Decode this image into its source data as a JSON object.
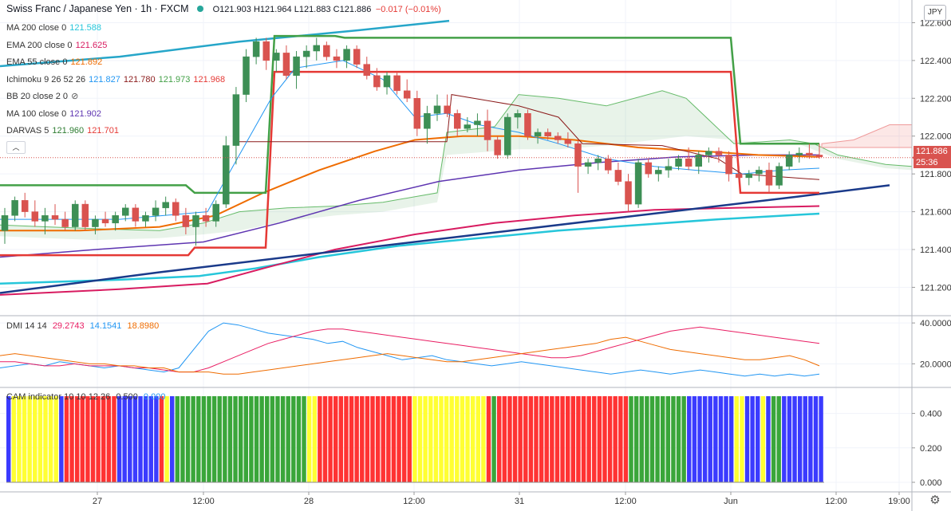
{
  "header": {
    "symbol": "Swiss Franc / Japanese Yen · 1h · FXCM",
    "ohlc_label": "O121.903 H121.964 L121.883 C121.886",
    "change": "−0.017 (−0.01%)",
    "currency": "JPY"
  },
  "indicators": [
    {
      "label": "MA 200 close 0",
      "values": [
        "121.588"
      ],
      "colors": [
        "#26c6da"
      ]
    },
    {
      "label": "EMA 200 close 0",
      "values": [
        "121.625"
      ],
      "colors": [
        "#d81b60"
      ]
    },
    {
      "label": "EMA 55 close 0",
      "values": [
        "121.892"
      ],
      "colors": [
        "#ef6c00"
      ]
    },
    {
      "label": "Ichimoku 9 26 52 26",
      "values": [
        "121.827",
        "121.780",
        "121.973",
        "121.968"
      ],
      "colors": [
        "#2196f3",
        "#8b1a1a",
        "#43a047",
        "#e53935"
      ]
    },
    {
      "label": "BB 20 close 2 0",
      "values": [],
      "colors": []
    },
    {
      "label": "MA 100 close 0",
      "values": [
        "121.902"
      ],
      "colors": [
        "#5e35b1"
      ]
    },
    {
      "label": "DARVAS 5",
      "values": [
        "121.960",
        "121.701"
      ],
      "colors": [
        "#2e7d32",
        "#e53935"
      ]
    }
  ],
  "price_tags": {
    "last": "121.886",
    "countdown": "25:36"
  },
  "y_axis_main": [
    "122.600",
    "122.400",
    "122.200",
    "122.000",
    "121.800",
    "121.600",
    "121.400",
    "121.200"
  ],
  "y_axis_dmi": [
    "40.0000",
    "20.0000"
  ],
  "y_axis_cam": [
    "0.400",
    "0.200",
    "0.000"
  ],
  "x_axis": [
    "27",
    "12:00",
    "28",
    "12:00",
    "31",
    "12:00",
    "Jun",
    "12:00",
    "19:00"
  ],
  "dmi_legend": {
    "label": "DMI 14 14",
    "values": [
      "29.2743",
      "14.1541",
      "18.8980"
    ],
    "colors": [
      "#e91e63",
      "#2196f3",
      "#ef6c00"
    ]
  },
  "cam_legend": {
    "label": "CAM indicator 10 10 12 26",
    "values": [
      "0.500",
      "0.000"
    ],
    "colors": [
      "#333333",
      "#2196f3"
    ]
  },
  "icons": {
    "visibility": "eye-slash-icon",
    "collapse": "chevron-up-icon",
    "settings": "gear-icon"
  },
  "colors": {
    "up": "#3d8f55",
    "down": "#d9534f",
    "cam_blue": "#3b3bff",
    "cam_yellow": "#ffff33",
    "cam_red": "#ff3333",
    "cam_green": "#3aa63a"
  },
  "chart_data": {
    "type": "candlestick",
    "title": "Swiss Franc / Japanese Yen, 1h, FXCM",
    "ylim": [
      121.05,
      122.72
    ],
    "candles_ohlc": [
      [
        121.5,
        121.62,
        121.43,
        121.58
      ],
      [
        121.58,
        121.68,
        121.55,
        121.66
      ],
      [
        121.66,
        121.7,
        121.57,
        121.6
      ],
      [
        121.6,
        121.66,
        121.52,
        121.55
      ],
      [
        121.55,
        121.62,
        121.48,
        121.58
      ],
      [
        121.58,
        121.64,
        121.53,
        121.56
      ],
      [
        121.56,
        121.6,
        121.5,
        121.52
      ],
      [
        121.52,
        121.66,
        121.5,
        121.64
      ],
      [
        121.64,
        121.66,
        121.5,
        121.52
      ],
      [
        121.52,
        121.58,
        121.48,
        121.56
      ],
      [
        121.56,
        121.6,
        121.52,
        121.54
      ],
      [
        121.54,
        121.6,
        121.5,
        121.58
      ],
      [
        121.58,
        121.64,
        121.55,
        121.62
      ],
      [
        121.62,
        121.64,
        121.52,
        121.55
      ],
      [
        121.55,
        121.6,
        121.52,
        121.58
      ],
      [
        121.58,
        121.66,
        121.55,
        121.62
      ],
      [
        121.62,
        121.68,
        121.58,
        121.65
      ],
      [
        121.65,
        121.67,
        121.55,
        121.58
      ],
      [
        121.58,
        121.62,
        121.48,
        121.52
      ],
      [
        121.52,
        121.6,
        121.42,
        121.58
      ],
      [
        121.58,
        121.62,
        121.52,
        121.55
      ],
      [
        121.55,
        121.66,
        121.52,
        121.64
      ],
      [
        121.64,
        122.0,
        121.62,
        121.95
      ],
      [
        121.95,
        122.26,
        121.85,
        122.22
      ],
      [
        122.22,
        122.46,
        122.18,
        122.42
      ],
      [
        122.42,
        122.52,
        122.38,
        122.5
      ],
      [
        122.5,
        122.52,
        122.35,
        122.4
      ],
      [
        122.4,
        122.46,
        122.34,
        122.44
      ],
      [
        122.44,
        122.48,
        122.3,
        122.32
      ],
      [
        122.32,
        122.45,
        122.25,
        122.42
      ],
      [
        122.42,
        122.48,
        122.36,
        122.45
      ],
      [
        122.45,
        122.52,
        122.4,
        122.48
      ],
      [
        122.48,
        122.5,
        122.4,
        122.42
      ],
      [
        122.42,
        122.46,
        122.36,
        122.4
      ],
      [
        122.4,
        122.48,
        122.36,
        122.46
      ],
      [
        122.46,
        122.48,
        122.36,
        122.38
      ],
      [
        122.38,
        122.42,
        122.3,
        122.32
      ],
      [
        122.32,
        122.36,
        122.24,
        122.26
      ],
      [
        122.26,
        122.34,
        122.22,
        122.32
      ],
      [
        122.32,
        122.34,
        122.22,
        122.24
      ],
      [
        122.24,
        122.3,
        122.18,
        122.2
      ],
      [
        122.2,
        122.24,
        122.0,
        122.04
      ],
      [
        122.04,
        122.16,
        121.96,
        122.12
      ],
      [
        122.12,
        122.22,
        122.08,
        122.16
      ],
      [
        122.16,
        122.22,
        122.1,
        122.12
      ],
      [
        122.12,
        122.14,
        122.0,
        122.04
      ],
      [
        122.04,
        122.1,
        122.02,
        122.06
      ],
      [
        122.06,
        122.12,
        122.0,
        122.08
      ],
      [
        122.08,
        122.14,
        121.92,
        121.98
      ],
      [
        121.98,
        122.0,
        121.88,
        121.9
      ],
      [
        121.9,
        122.12,
        121.88,
        122.1
      ],
      [
        122.1,
        122.14,
        122.04,
        122.12
      ],
      [
        122.12,
        122.14,
        121.98,
        122.0
      ],
      [
        122.0,
        122.04,
        121.96,
        122.02
      ],
      [
        122.02,
        122.04,
        121.98,
        122.0
      ],
      [
        122.0,
        122.02,
        121.96,
        121.98
      ],
      [
        121.98,
        122.02,
        121.94,
        121.96
      ],
      [
        121.96,
        121.98,
        121.7,
        121.84
      ],
      [
        121.84,
        121.88,
        121.8,
        121.86
      ],
      [
        121.86,
        121.9,
        121.82,
        121.88
      ],
      [
        121.88,
        121.9,
        121.8,
        121.82
      ],
      [
        121.82,
        121.86,
        121.74,
        121.76
      ],
      [
        121.76,
        121.8,
        121.6,
        121.64
      ],
      [
        121.64,
        121.88,
        121.62,
        121.86
      ],
      [
        121.86,
        121.88,
        121.78,
        121.8
      ],
      [
        121.8,
        121.84,
        121.76,
        121.82
      ],
      [
        121.82,
        121.88,
        121.78,
        121.84
      ],
      [
        121.84,
        121.9,
        121.82,
        121.88
      ],
      [
        121.88,
        121.94,
        121.82,
        121.84
      ],
      [
        121.84,
        121.92,
        121.8,
        121.9
      ],
      [
        121.9,
        121.94,
        121.86,
        121.92
      ],
      [
        121.92,
        121.94,
        121.86,
        121.9
      ],
      [
        121.9,
        121.92,
        121.76,
        121.8
      ],
      [
        121.8,
        121.84,
        121.76,
        121.78
      ],
      [
        121.78,
        121.82,
        121.74,
        121.8
      ],
      [
        121.8,
        121.84,
        121.76,
        121.82
      ],
      [
        121.82,
        121.86,
        121.7,
        121.74
      ],
      [
        121.74,
        121.86,
        121.72,
        121.84
      ],
      [
        121.84,
        121.92,
        121.82,
        121.9
      ],
      [
        121.9,
        121.94,
        121.86,
        121.91
      ],
      [
        121.91,
        121.96,
        121.88,
        121.9
      ],
      [
        121.9,
        121.96,
        121.88,
        121.89
      ]
    ],
    "dmi_series": [
      {
        "name": "+DI",
        "values": [
          18,
          19,
          20,
          19,
          21,
          20,
          19,
          18,
          19,
          18,
          17,
          16,
          18,
          27,
          36,
          40,
          39,
          37,
          35,
          34,
          33,
          32,
          30,
          31,
          28,
          26,
          24,
          22,
          23,
          24,
          22,
          21,
          20,
          19,
          20,
          21,
          20,
          19,
          18,
          17,
          16,
          15,
          16,
          17,
          16,
          15,
          16,
          17,
          16,
          15,
          14,
          15,
          14,
          15,
          14,
          15
        ]
      },
      {
        "name": "-DI",
        "values": [
          21,
          21,
          20,
          19,
          19,
          20,
          19,
          19,
          19,
          18,
          18,
          17,
          16,
          16,
          18,
          21,
          24,
          27,
          30,
          32,
          34,
          36,
          37,
          37,
          36,
          35,
          34,
          33,
          32,
          31,
          30,
          29,
          28,
          27,
          26,
          25,
          24,
          23,
          23,
          24,
          26,
          28,
          30,
          32,
          34,
          36,
          37,
          38,
          37,
          36,
          35,
          34,
          33,
          32,
          31,
          30
        ]
      },
      {
        "name": "ADX",
        "values": [
          24,
          25,
          24,
          23,
          22,
          21,
          20,
          20,
          19,
          19,
          18,
          18,
          16,
          16,
          16,
          15,
          15,
          16,
          17,
          18,
          19,
          20,
          21,
          22,
          23,
          24,
          25,
          24,
          23,
          22,
          21,
          21,
          22,
          23,
          24,
          25,
          26,
          27,
          28,
          29,
          30,
          32,
          33,
          31,
          29,
          27,
          26,
          25,
          24,
          23,
          22,
          22,
          23,
          24,
          22,
          19
        ]
      }
    ],
    "cam_colors": [
      "B",
      "Y",
      "Y",
      "Y",
      "Y",
      "Y",
      "Y",
      "Y",
      "Y",
      "Y",
      "B",
      "R",
      "R",
      "R",
      "R",
      "R",
      "R",
      "R",
      "R",
      "R",
      "R",
      "B",
      "B",
      "B",
      "B",
      "B",
      "B",
      "B",
      "B",
      "R",
      "Y",
      "B",
      "G",
      "G",
      "G",
      "G",
      "G",
      "G",
      "G",
      "G",
      "G",
      "G",
      "G",
      "G",
      "G",
      "G",
      "G",
      "G",
      "G",
      "G",
      "G",
      "G",
      "G",
      "G",
      "G",
      "G",
      "G",
      "Y",
      "Y",
      "R",
      "R",
      "R",
      "R",
      "R",
      "R",
      "R",
      "R",
      "R",
      "R",
      "R",
      "R",
      "R",
      "R",
      "R",
      "R",
      "R",
      "R",
      "Y",
      "Y",
      "Y",
      "Y",
      "Y",
      "Y",
      "Y",
      "Y",
      "Y",
      "Y",
      "Y",
      "Y",
      "Y",
      "Y",
      "R",
      "G",
      "R",
      "R",
      "R",
      "R",
      "R",
      "R",
      "R",
      "R",
      "R",
      "R",
      "R",
      "R",
      "R",
      "R",
      "R",
      "R",
      "R",
      "R",
      "R",
      "R",
      "R",
      "R",
      "R",
      "R",
      "R",
      "G",
      "G",
      "G",
      "G",
      "G",
      "G",
      "G",
      "G",
      "G",
      "G",
      "G",
      "B",
      "B",
      "B",
      "B",
      "B",
      "B",
      "B",
      "B",
      "B",
      "Y",
      "Y",
      "B",
      "B",
      "B",
      "Y",
      "B",
      "G",
      "G",
      "B",
      "B",
      "B",
      "B",
      "B",
      "B",
      "B",
      "B"
    ]
  }
}
